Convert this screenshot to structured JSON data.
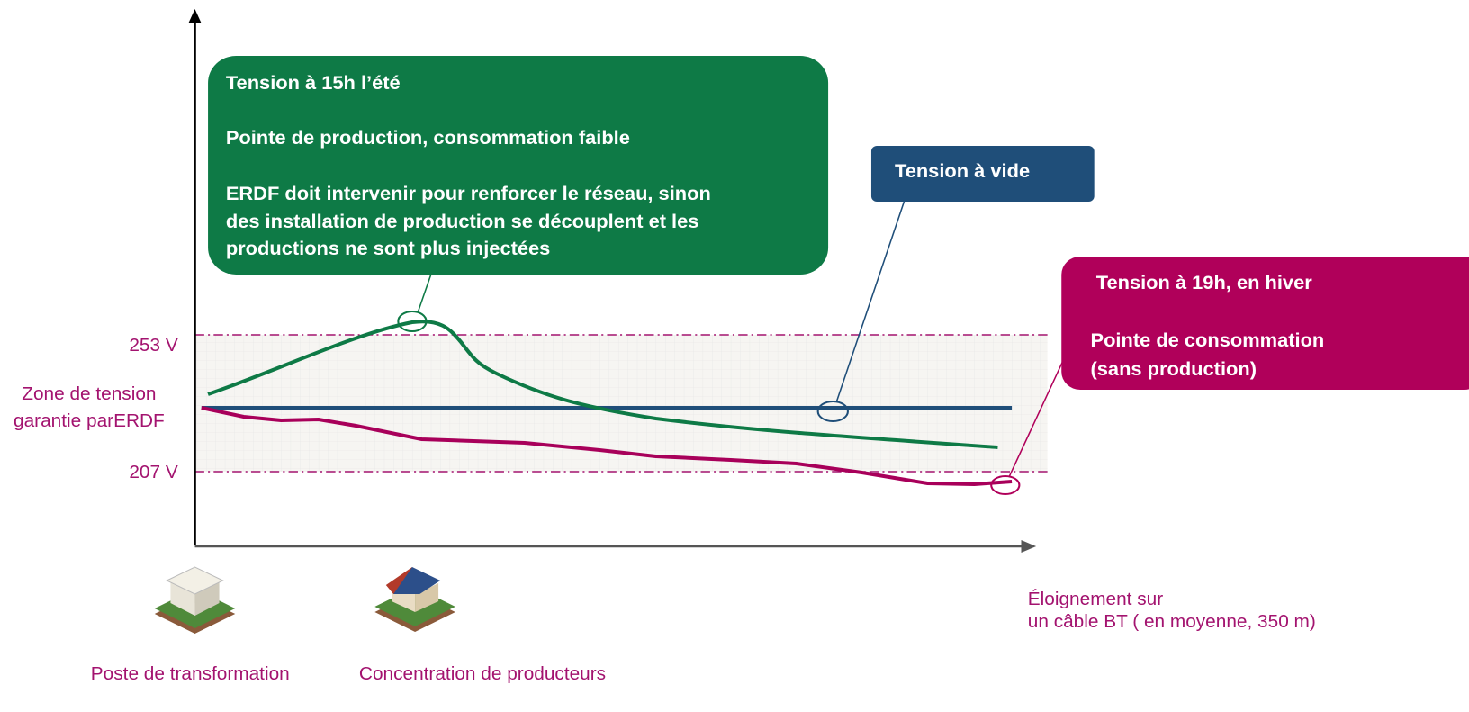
{
  "y_axis": {
    "labels": [
      "253 V",
      "207 V"
    ],
    "zone_label": [
      "Zone de tension",
      "garantie parERDF"
    ]
  },
  "x_axis": {
    "label": [
      "Éloignement sur",
      "un câble BT ( en moyenne, 350 m)"
    ]
  },
  "callouts": [
    {
      "lines": [
        "Tension à 15h l’été",
        "Pointe de production, consommation faible",
        "ERDF doit intervenir pour renforcer le réseau, sinon",
        "des installation de production se découplent et les",
        "productions ne sont plus injectées"
      ]
    },
    {
      "lines": [
        "Tension à vide"
      ]
    },
    {
      "lines": [
        "Tension à 19h, en hiver",
        "Pointe de consommation",
        "(sans production)"
      ]
    }
  ],
  "icons": [
    {
      "label": "Poste de transformation"
    },
    {
      "label": "Concentration de producteurs"
    }
  ]
}
